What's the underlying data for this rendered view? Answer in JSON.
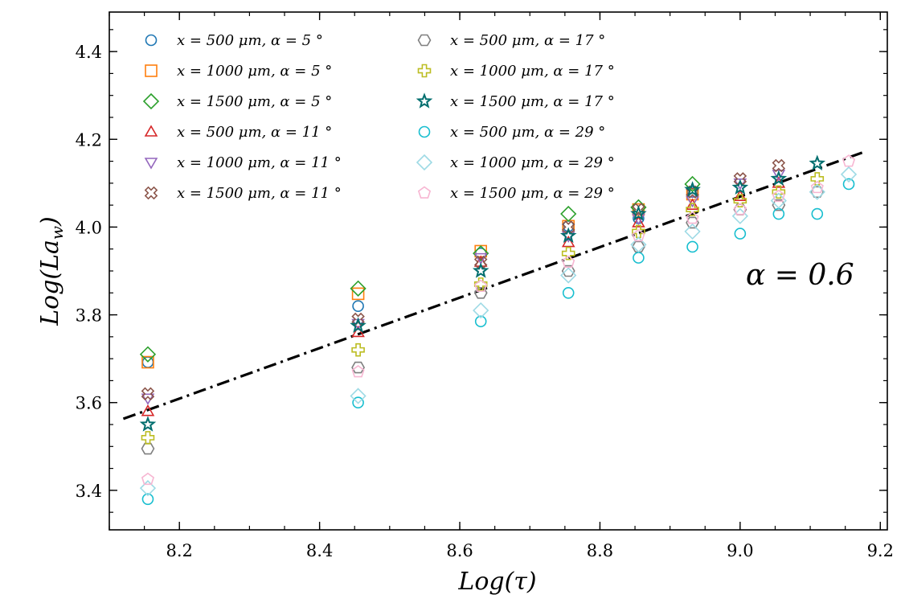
{
  "chart_data": {
    "type": "scatter",
    "xlabel": "Log(τ)",
    "ylabel": "Log(Law)",
    "ylabel_main": "Log(La",
    "ylabel_sub": "w",
    "ylabel_close": ")",
    "xlim": [
      8.1,
      9.21
    ],
    "ylim": [
      3.31,
      4.49
    ],
    "xticks": [
      8.2,
      8.4,
      8.6,
      8.8,
      9.0,
      9.2
    ],
    "xtick_labels": [
      "8.2",
      "8.4",
      "8.6",
      "8.8",
      "9.0",
      "9.2"
    ],
    "yticks": [
      3.4,
      3.6,
      3.8,
      4.0,
      4.2,
      4.4
    ],
    "ytick_labels": [
      "3.4",
      "3.6",
      "3.8",
      "4.0",
      "4.2",
      "4.4"
    ],
    "x_minor_step": 0.05,
    "y_minor_step": 0.05,
    "legend_position": "top-left",
    "legend_columns": 2,
    "annotation": "α = 0.6",
    "fit_line": {
      "x": [
        8.12,
        9.18
      ],
      "y": [
        3.563,
        4.173
      ],
      "style": "dashdot",
      "color": "#000000"
    },
    "series": [
      {
        "name": "x = 500 μm, α = 5 °",
        "marker": "circle",
        "color": "#1f77b4",
        "x": [
          8.155,
          8.455,
          8.63,
          8.755,
          8.855,
          8.932
        ],
        "y": [
          3.692,
          3.82,
          3.94,
          4.002,
          4.02,
          4.08
        ]
      },
      {
        "name": "x = 1000 μm, α = 5 °",
        "marker": "square",
        "color": "#ff7f0e",
        "x": [
          8.155,
          8.455,
          8.63,
          8.755,
          8.855,
          8.932
        ],
        "y": [
          3.692,
          3.848,
          3.945,
          4.002,
          4.04,
          4.075
        ]
      },
      {
        "name": "x = 1500 μm, α = 5 °",
        "marker": "diamond",
        "color": "#2ca02c",
        "x": [
          8.155,
          8.455,
          8.63,
          8.755,
          8.855,
          8.932
        ],
        "y": [
          3.71,
          3.86,
          3.94,
          4.03,
          4.045,
          4.098
        ]
      },
      {
        "name": "x = 500 μm, α = 11 °",
        "marker": "triangle-up",
        "color": "#d62728",
        "x": [
          8.155,
          8.455,
          8.63,
          8.755,
          8.855,
          8.932,
          9.0,
          9.055
        ],
        "y": [
          3.58,
          3.76,
          3.92,
          3.965,
          4.01,
          4.05,
          4.07,
          4.1
        ]
      },
      {
        "name": "x = 1000 μm, α = 11 °",
        "marker": "triangle-down",
        "color": "#9467bd",
        "x": [
          8.155,
          8.455,
          8.63,
          8.755,
          8.855,
          8.932,
          9.0,
          9.055
        ],
        "y": [
          3.61,
          3.78,
          3.93,
          3.98,
          4.02,
          4.06,
          4.1,
          4.12
        ]
      },
      {
        "name": "x = 1500 μm, α = 11 °",
        "marker": "x-thick",
        "color": "#8c564b",
        "x": [
          8.155,
          8.455,
          8.63,
          8.755,
          8.855,
          8.932,
          9.0,
          9.055
        ],
        "y": [
          3.62,
          3.79,
          3.92,
          4.0,
          4.04,
          4.08,
          4.11,
          4.14
        ]
      },
      {
        "name": "x = 500 μm, α = 17 °",
        "marker": "hexagon",
        "color": "#7f7f7f",
        "x": [
          8.155,
          8.455,
          8.63,
          8.755,
          8.855,
          8.932,
          9.0,
          9.055,
          9.11
        ],
        "y": [
          3.495,
          3.68,
          3.85,
          3.9,
          3.955,
          4.01,
          4.04,
          4.05,
          4.08
        ]
      },
      {
        "name": "x = 1000 μm, α = 17 °",
        "marker": "plus-thick",
        "color": "#bcbd22",
        "x": [
          8.155,
          8.455,
          8.63,
          8.755,
          8.855,
          8.932,
          9.0,
          9.055,
          9.11
        ],
        "y": [
          3.52,
          3.72,
          3.87,
          3.94,
          3.99,
          4.04,
          4.06,
          4.08,
          4.11
        ]
      },
      {
        "name": "x = 1500 μm, α = 17 °",
        "marker": "star",
        "color": "#006e6e",
        "x": [
          8.155,
          8.455,
          8.63,
          8.755,
          8.855,
          8.932,
          9.0,
          9.055,
          9.11
        ],
        "y": [
          3.55,
          3.775,
          3.9,
          3.98,
          4.03,
          4.085,
          4.09,
          4.11,
          4.145
        ]
      },
      {
        "name": "x = 500 μm, α = 29 °",
        "marker": "circle",
        "color": "#17becf",
        "x": [
          8.155,
          8.455,
          8.63,
          8.755,
          8.855,
          8.932,
          9.0,
          9.055,
          9.11,
          9.155
        ],
        "y": [
          3.38,
          3.6,
          3.785,
          3.85,
          3.93,
          3.955,
          3.985,
          4.03,
          4.03,
          4.098
        ]
      },
      {
        "name": "x = 1000 μm, α = 29 °",
        "marker": "diamond",
        "color": "#9edae5",
        "x": [
          8.155,
          8.455,
          8.63,
          8.755,
          8.855,
          8.932,
          9.0,
          9.055,
          9.11,
          9.155
        ],
        "y": [
          3.405,
          3.615,
          3.81,
          3.89,
          3.96,
          3.99,
          4.025,
          4.06,
          4.08,
          4.12
        ]
      },
      {
        "name": "x = 1500 μm, α = 29 °",
        "marker": "pentagon",
        "color": "#f7b6d2",
        "x": [
          8.155,
          8.455,
          8.63,
          8.755,
          8.855,
          8.932,
          9.0,
          9.055,
          9.11,
          9.155
        ],
        "y": [
          3.425,
          3.67,
          3.865,
          3.92,
          3.98,
          4.02,
          4.04,
          4.07,
          4.09,
          4.15
        ]
      }
    ]
  }
}
